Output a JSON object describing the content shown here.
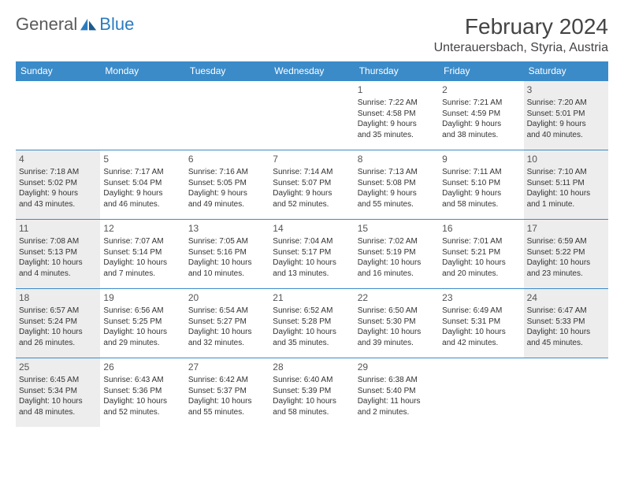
{
  "brand": {
    "part1": "General",
    "part2": "Blue"
  },
  "title": "February 2024",
  "location": "Unterauersbach, Styria, Austria",
  "colors": {
    "header_bg": "#3b8bc9",
    "header_text": "#ffffff",
    "border": "#3b8bc9",
    "shaded_bg": "#ededed",
    "text": "#333333",
    "brand_gray": "#5a5a5a",
    "brand_blue": "#2b7bbf"
  },
  "layout": {
    "type": "calendar",
    "columns": 7,
    "rows": 5,
    "cell_font_size": 10,
    "daynum_font_size": 12,
    "header_font_size": 12
  },
  "weekdays": [
    "Sunday",
    "Monday",
    "Tuesday",
    "Wednesday",
    "Thursday",
    "Friday",
    "Saturday"
  ],
  "weeks": [
    [
      {
        "blank": true
      },
      {
        "blank": true
      },
      {
        "blank": true
      },
      {
        "blank": true
      },
      {
        "day": "1",
        "sunrise": "Sunrise: 7:22 AM",
        "sunset": "Sunset: 4:58 PM",
        "daylight1": "Daylight: 9 hours",
        "daylight2": "and 35 minutes."
      },
      {
        "day": "2",
        "sunrise": "Sunrise: 7:21 AM",
        "sunset": "Sunset: 4:59 PM",
        "daylight1": "Daylight: 9 hours",
        "daylight2": "and 38 minutes."
      },
      {
        "day": "3",
        "shaded": true,
        "sunrise": "Sunrise: 7:20 AM",
        "sunset": "Sunset: 5:01 PM",
        "daylight1": "Daylight: 9 hours",
        "daylight2": "and 40 minutes."
      }
    ],
    [
      {
        "day": "4",
        "shaded": true,
        "sunrise": "Sunrise: 7:18 AM",
        "sunset": "Sunset: 5:02 PM",
        "daylight1": "Daylight: 9 hours",
        "daylight2": "and 43 minutes."
      },
      {
        "day": "5",
        "sunrise": "Sunrise: 7:17 AM",
        "sunset": "Sunset: 5:04 PM",
        "daylight1": "Daylight: 9 hours",
        "daylight2": "and 46 minutes."
      },
      {
        "day": "6",
        "sunrise": "Sunrise: 7:16 AM",
        "sunset": "Sunset: 5:05 PM",
        "daylight1": "Daylight: 9 hours",
        "daylight2": "and 49 minutes."
      },
      {
        "day": "7",
        "sunrise": "Sunrise: 7:14 AM",
        "sunset": "Sunset: 5:07 PM",
        "daylight1": "Daylight: 9 hours",
        "daylight2": "and 52 minutes."
      },
      {
        "day": "8",
        "sunrise": "Sunrise: 7:13 AM",
        "sunset": "Sunset: 5:08 PM",
        "daylight1": "Daylight: 9 hours",
        "daylight2": "and 55 minutes."
      },
      {
        "day": "9",
        "sunrise": "Sunrise: 7:11 AM",
        "sunset": "Sunset: 5:10 PM",
        "daylight1": "Daylight: 9 hours",
        "daylight2": "and 58 minutes."
      },
      {
        "day": "10",
        "shaded": true,
        "sunrise": "Sunrise: 7:10 AM",
        "sunset": "Sunset: 5:11 PM",
        "daylight1": "Daylight: 10 hours",
        "daylight2": "and 1 minute."
      }
    ],
    [
      {
        "day": "11",
        "shaded": true,
        "sunrise": "Sunrise: 7:08 AM",
        "sunset": "Sunset: 5:13 PM",
        "daylight1": "Daylight: 10 hours",
        "daylight2": "and 4 minutes."
      },
      {
        "day": "12",
        "sunrise": "Sunrise: 7:07 AM",
        "sunset": "Sunset: 5:14 PM",
        "daylight1": "Daylight: 10 hours",
        "daylight2": "and 7 minutes."
      },
      {
        "day": "13",
        "sunrise": "Sunrise: 7:05 AM",
        "sunset": "Sunset: 5:16 PM",
        "daylight1": "Daylight: 10 hours",
        "daylight2": "and 10 minutes."
      },
      {
        "day": "14",
        "sunrise": "Sunrise: 7:04 AM",
        "sunset": "Sunset: 5:17 PM",
        "daylight1": "Daylight: 10 hours",
        "daylight2": "and 13 minutes."
      },
      {
        "day": "15",
        "sunrise": "Sunrise: 7:02 AM",
        "sunset": "Sunset: 5:19 PM",
        "daylight1": "Daylight: 10 hours",
        "daylight2": "and 16 minutes."
      },
      {
        "day": "16",
        "sunrise": "Sunrise: 7:01 AM",
        "sunset": "Sunset: 5:21 PM",
        "daylight1": "Daylight: 10 hours",
        "daylight2": "and 20 minutes."
      },
      {
        "day": "17",
        "shaded": true,
        "sunrise": "Sunrise: 6:59 AM",
        "sunset": "Sunset: 5:22 PM",
        "daylight1": "Daylight: 10 hours",
        "daylight2": "and 23 minutes."
      }
    ],
    [
      {
        "day": "18",
        "shaded": true,
        "sunrise": "Sunrise: 6:57 AM",
        "sunset": "Sunset: 5:24 PM",
        "daylight1": "Daylight: 10 hours",
        "daylight2": "and 26 minutes."
      },
      {
        "day": "19",
        "sunrise": "Sunrise: 6:56 AM",
        "sunset": "Sunset: 5:25 PM",
        "daylight1": "Daylight: 10 hours",
        "daylight2": "and 29 minutes."
      },
      {
        "day": "20",
        "sunrise": "Sunrise: 6:54 AM",
        "sunset": "Sunset: 5:27 PM",
        "daylight1": "Daylight: 10 hours",
        "daylight2": "and 32 minutes."
      },
      {
        "day": "21",
        "sunrise": "Sunrise: 6:52 AM",
        "sunset": "Sunset: 5:28 PM",
        "daylight1": "Daylight: 10 hours",
        "daylight2": "and 35 minutes."
      },
      {
        "day": "22",
        "sunrise": "Sunrise: 6:50 AM",
        "sunset": "Sunset: 5:30 PM",
        "daylight1": "Daylight: 10 hours",
        "daylight2": "and 39 minutes."
      },
      {
        "day": "23",
        "sunrise": "Sunrise: 6:49 AM",
        "sunset": "Sunset: 5:31 PM",
        "daylight1": "Daylight: 10 hours",
        "daylight2": "and 42 minutes."
      },
      {
        "day": "24",
        "shaded": true,
        "sunrise": "Sunrise: 6:47 AM",
        "sunset": "Sunset: 5:33 PM",
        "daylight1": "Daylight: 10 hours",
        "daylight2": "and 45 minutes."
      }
    ],
    [
      {
        "day": "25",
        "shaded": true,
        "sunrise": "Sunrise: 6:45 AM",
        "sunset": "Sunset: 5:34 PM",
        "daylight1": "Daylight: 10 hours",
        "daylight2": "and 48 minutes."
      },
      {
        "day": "26",
        "sunrise": "Sunrise: 6:43 AM",
        "sunset": "Sunset: 5:36 PM",
        "daylight1": "Daylight: 10 hours",
        "daylight2": "and 52 minutes."
      },
      {
        "day": "27",
        "sunrise": "Sunrise: 6:42 AM",
        "sunset": "Sunset: 5:37 PM",
        "daylight1": "Daylight: 10 hours",
        "daylight2": "and 55 minutes."
      },
      {
        "day": "28",
        "sunrise": "Sunrise: 6:40 AM",
        "sunset": "Sunset: 5:39 PM",
        "daylight1": "Daylight: 10 hours",
        "daylight2": "and 58 minutes."
      },
      {
        "day": "29",
        "sunrise": "Sunrise: 6:38 AM",
        "sunset": "Sunset: 5:40 PM",
        "daylight1": "Daylight: 11 hours",
        "daylight2": "and 2 minutes."
      },
      {
        "blank": true
      },
      {
        "blank": true
      }
    ]
  ]
}
